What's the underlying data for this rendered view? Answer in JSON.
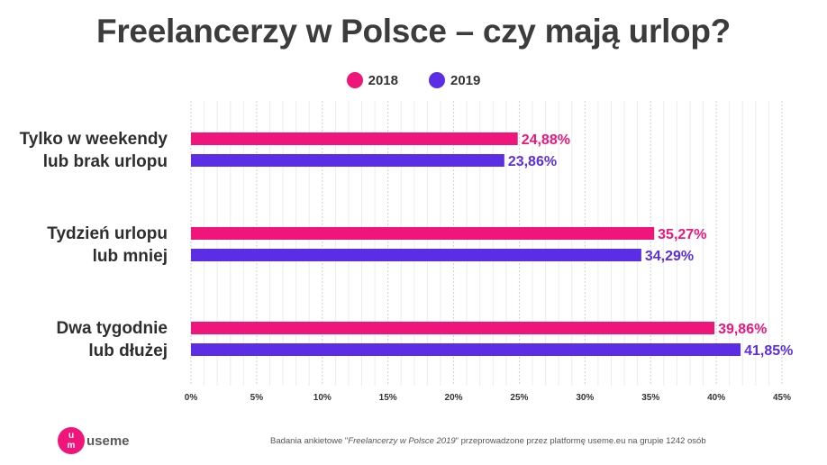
{
  "chart_data": {
    "type": "bar",
    "orientation": "horizontal",
    "title": "Freelancerzy w Polsce – czy mają urlop?",
    "categories": [
      [
        "Tylko w weekendy",
        "lub brak urlopu"
      ],
      [
        "Tydzień urlopu",
        "lub mniej"
      ],
      [
        "Dwa tygodnie",
        "lub dłużej"
      ]
    ],
    "series": [
      {
        "name": "2018",
        "color": "#f0157a",
        "values": [
          24.88,
          35.27,
          39.86
        ],
        "labels": [
          "24,88%",
          "35,27%",
          "39,86%"
        ]
      },
      {
        "name": "2019",
        "color": "#5b2ee6",
        "values": [
          23.86,
          34.29,
          41.85
        ],
        "labels": [
          "23,86%",
          "34,29%",
          "41,85%"
        ]
      }
    ],
    "xlim": [
      0,
      45
    ],
    "xticks": [
      "0%",
      "5%",
      "10%",
      "15%",
      "20%",
      "25%",
      "30%",
      "35%",
      "40%",
      "45%"
    ],
    "grid": true,
    "legend_position": "top-center"
  },
  "brand": {
    "logo_letters": [
      "u",
      "m"
    ],
    "name": "useme"
  },
  "footnote": {
    "before": "Badania ankietowe \"",
    "italic": "Freelancerzy w Polsce 2019",
    "after": "\" przeprowadzone przez platformę useme.eu na grupie 1242 osób"
  }
}
